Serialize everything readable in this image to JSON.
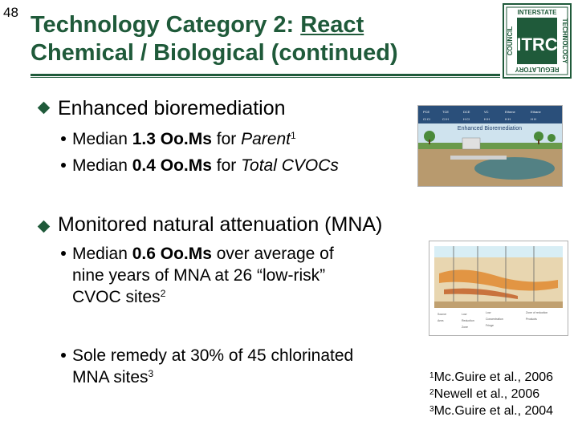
{
  "slide_number": "48",
  "title": {
    "line1_prefix": "Technology Category 2: ",
    "line1_underlined": "React",
    "line2": "Chemical / Biological (continued)"
  },
  "logo": {
    "top_text": "INTERSTATE",
    "left_text": "COUNCIL",
    "right_text": "TECHNOLOGY",
    "bottom_text": "REGULATORY",
    "center_text": "ITRC",
    "color": "#1f5a3a"
  },
  "bullets": [
    {
      "label": "Enhanced bioremediation",
      "subs": [
        {
          "a": "Median ",
          "b": "1.3 Oo.Ms",
          "c": " for ",
          "d": "Parent",
          "sup": "1"
        },
        {
          "a": "Median ",
          "b": "0.4 Oo.Ms",
          "c": " for ",
          "d": "Total CVOCs",
          "sup": ""
        }
      ]
    },
    {
      "label": "Monitored natural attenuation (MNA)",
      "subs": [
        {
          "line1_a": "Median ",
          "line1_b": "0.6 Oo.Ms",
          "line1_c": " over average of",
          "line2": "nine years of MNA at 26 “low-risk”",
          "line3": "CVOC sites",
          "sup": "2"
        },
        {
          "line1": "Sole remedy at 30% of 45 chlorinated",
          "line2": "MNA sites",
          "sup": "3"
        }
      ]
    }
  ],
  "figures": {
    "bioremediation_title": "Enhanced Bioremediation"
  },
  "references": [
    {
      "sup": "1",
      "text": "Mc.Guire et al., 2006"
    },
    {
      "sup": "2",
      "text": "Newell et al., 2006"
    },
    {
      "sup": "3",
      "text": "Mc.Guire et al., 2004"
    }
  ]
}
